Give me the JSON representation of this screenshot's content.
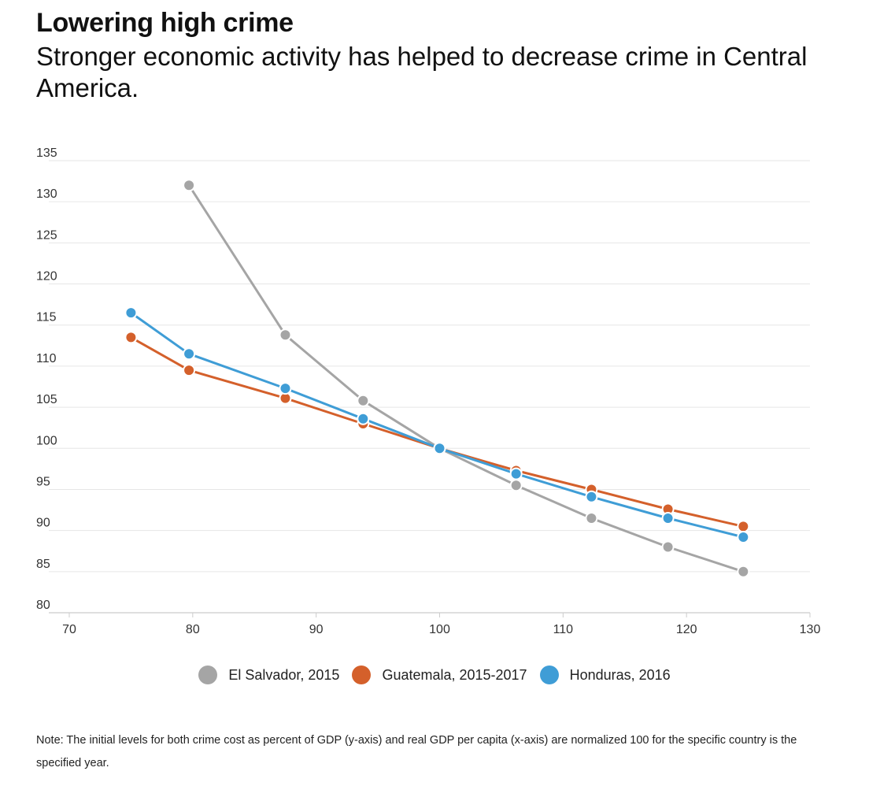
{
  "title": "Lowering high crime",
  "subtitle": "Stronger economic activity has helped to decrease crime in Central America.",
  "note": "Note:  The initial levels for both crime cost as percent of GDP (y-axis) and real GDP per capita (x-axis) are normalized 100 for the specific country is the specified year.",
  "colors": {
    "el_salvador": "#a5a5a5",
    "guatemala": "#d4602b",
    "honduras": "#3f9dd6",
    "grid": "#e6e6e6",
    "axis": "#cccccc"
  },
  "chart_data": {
    "type": "line",
    "title": "Lowering high crime",
    "xlabel": "",
    "ylabel": "",
    "xlim": [
      70,
      130
    ],
    "ylim": [
      80,
      135
    ],
    "xticks": [
      70,
      80,
      90,
      100,
      110,
      120,
      130
    ],
    "yticks": [
      80,
      85,
      90,
      95,
      100,
      105,
      110,
      115,
      120,
      125,
      130,
      135
    ],
    "grid": true,
    "legend_position": "bottom",
    "series": [
      {
        "name": "El Salvador, 2015",
        "color": "#a5a5a5",
        "points": [
          [
            79.7,
            132.0
          ],
          [
            87.5,
            113.8
          ],
          [
            93.8,
            105.8
          ],
          [
            100,
            100
          ],
          [
            106.2,
            95.5
          ],
          [
            112.3,
            91.5
          ],
          [
            118.5,
            88.0
          ],
          [
            124.6,
            85.0
          ]
        ]
      },
      {
        "name": "Guatemala, 2015-2017",
        "color": "#d4602b",
        "points": [
          [
            75.0,
            113.5
          ],
          [
            79.7,
            109.5
          ],
          [
            87.5,
            106.1
          ],
          [
            93.8,
            103.0
          ],
          [
            100,
            100
          ],
          [
            106.2,
            97.3
          ],
          [
            112.3,
            95.0
          ],
          [
            118.5,
            92.6
          ],
          [
            124.6,
            90.5
          ]
        ]
      },
      {
        "name": "Honduras, 2016",
        "color": "#3f9dd6",
        "points": [
          [
            75.0,
            116.5
          ],
          [
            79.7,
            111.5
          ],
          [
            87.5,
            107.3
          ],
          [
            93.8,
            103.6
          ],
          [
            100,
            100
          ],
          [
            106.2,
            96.9
          ],
          [
            112.3,
            94.1
          ],
          [
            118.5,
            91.5
          ],
          [
            124.6,
            89.2
          ]
        ]
      }
    ]
  }
}
